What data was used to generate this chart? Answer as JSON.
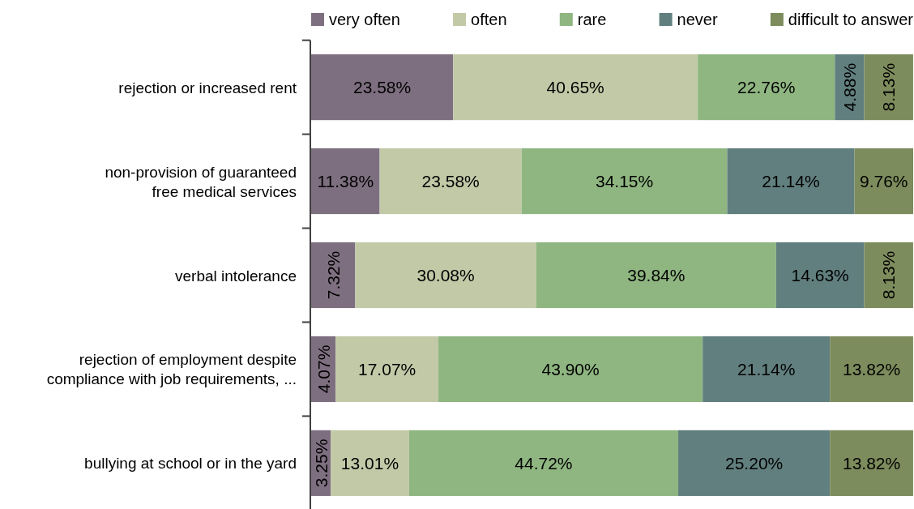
{
  "chart_data": {
    "type": "bar",
    "orientation": "horizontal",
    "stacked": true,
    "legend": "top",
    "categories": [
      "rejection or increased rent",
      "non-provision of guaranteed free medical services",
      "verbal intolerance",
      "rejection of employment despite compliance with job requirements, ...",
      "bullying at school or in the yard"
    ],
    "series": [
      {
        "name": "very often",
        "color": "#7e6f80",
        "values": [
          23.58,
          11.38,
          7.32,
          4.07,
          3.25
        ],
        "value_labels": [
          "23.58%",
          "11.38%",
          "7.32%",
          "4.07%",
          "3.25%"
        ]
      },
      {
        "name": "often",
        "color": "#c2c9a7",
        "values": [
          40.65,
          23.58,
          30.08,
          17.07,
          13.01
        ],
        "value_labels": [
          "40.65%",
          "23.58%",
          "30.08%",
          "17.07%",
          "13.01%"
        ]
      },
      {
        "name": "rare",
        "color": "#8fb681",
        "values": [
          22.76,
          34.15,
          39.84,
          43.9,
          44.72
        ],
        "value_labels": [
          "22.76%",
          "34.15%",
          "39.84%",
          "43.90%",
          "44.72%"
        ]
      },
      {
        "name": "never",
        "color": "#617f7e",
        "values": [
          4.88,
          21.14,
          14.63,
          21.14,
          25.2
        ],
        "value_labels": [
          "4.88%",
          "21.14%",
          "14.63%",
          "21.14%",
          "25.20%"
        ]
      },
      {
        "name": "difficult to answer",
        "color": "#7d8c5c",
        "values": [
          8.13,
          9.76,
          8.13,
          13.82,
          13.82
        ],
        "value_labels": [
          "8.13%",
          "9.76%",
          "8.13%",
          "13.82%",
          "13.82%"
        ]
      }
    ]
  }
}
